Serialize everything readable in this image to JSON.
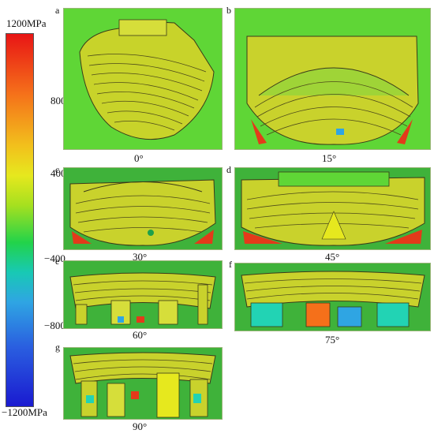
{
  "colorbar": {
    "max_label": "1200MPa",
    "min_label": "−1200MPa",
    "ticks": [
      "800",
      "400",
      "−400",
      "−800"
    ],
    "colors": [
      "#e81515",
      "#f5701a",
      "#f2c01c",
      "#e6e81e",
      "#a6e01f",
      "#22d34a",
      "#18c9b4",
      "#2fa5e3",
      "#2a5fe0",
      "#1a1ad0"
    ]
  },
  "panels": [
    {
      "letter": "a",
      "angle": "0°"
    },
    {
      "letter": "b",
      "angle": "15°"
    },
    {
      "letter": "c",
      "angle": "30°"
    },
    {
      "letter": "d",
      "angle": "45°"
    },
    {
      "letter": "e",
      "angle": "60°"
    },
    {
      "letter": "f",
      "angle": "75°"
    },
    {
      "letter": "g",
      "angle": "90°"
    }
  ]
}
